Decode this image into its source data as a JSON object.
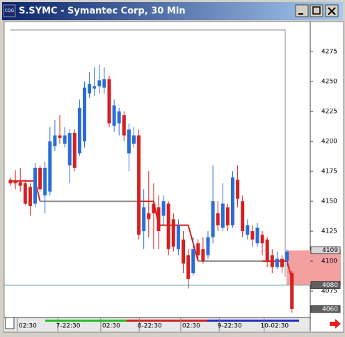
{
  "window_title": "S.SYMC - Symantec Corp, 30 Min",
  "app_icon": "CQG",
  "chart_data": {
    "type": "candlestick",
    "up_color": "#2a6dd6",
    "down_color": "#d42020",
    "ylim": [
      4053.5,
      4299.5
    ],
    "yticks": [
      4075,
      4100,
      4125,
      4150,
      4175,
      4200,
      4225,
      4250,
      4275
    ],
    "xticks": [
      {
        "value": 3.5,
        "label": "02:30"
      },
      {
        "value": 11.7,
        "label": "7-22:30"
      },
      {
        "value": 20.4,
        "label": "02:30"
      },
      {
        "value": 28.2,
        "label": "8-22:30"
      },
      {
        "value": 36.6,
        "label": "02:30"
      },
      {
        "value": 44.4,
        "label": "9-22:30"
      },
      {
        "value": 53.5,
        "label": "10-02:30"
      }
    ],
    "open": [
      4168,
      4167,
      4166,
      4165,
      4162,
      4148,
      4178,
      4155,
      4158,
      4196,
      4205,
      4198,
      4180,
      4207,
      4190,
      4200,
      4240,
      4244,
      4246,
      4245,
      4252,
      4213,
      4215,
      4222,
      4190,
      4198,
      4205,
      4125,
      4140,
      4148,
      4145,
      4138,
      4148,
      4135,
      4110,
      4118,
      4105,
      4090,
      4115,
      4110,
      4105,
      4120,
      4140,
      4128,
      4145,
      4130,
      4168,
      4150,
      4122,
      4125,
      4115,
      4122,
      4118,
      4105,
      4095,
      4102,
      4100,
      4090
    ],
    "high": [
      4170,
      4176,
      4178,
      4168,
      4165,
      4182,
      4180,
      4183,
      4212,
      4218,
      4222,
      4212,
      4210,
      4210,
      4235,
      4250,
      4258,
      4262,
      4264,
      4262,
      4255,
      4235,
      4228,
      4225,
      4215,
      4212,
      4210,
      4160,
      4175,
      4165,
      4155,
      4155,
      4150,
      4140,
      4135,
      4125,
      4110,
      4120,
      4118,
      4120,
      4125,
      4180,
      4150,
      4165,
      4148,
      4175,
      4180,
      4155,
      4135,
      4130,
      4132,
      4125,
      4120,
      4110,
      4108,
      4105,
      4110,
      4092
    ],
    "low": [
      4163,
      4160,
      4158,
      4147,
      4138,
      4145,
      4158,
      4140,
      4155,
      4192,
      4198,
      4195,
      4165,
      4175,
      4188,
      4195,
      4236,
      4238,
      4240,
      4240,
      4212,
      4208,
      4205,
      4200,
      4175,
      4195,
      4118,
      4110,
      4120,
      4110,
      4110,
      4130,
      4105,
      4108,
      4105,
      4090,
      4077,
      4088,
      4100,
      4098,
      4102,
      4115,
      4125,
      4125,
      4125,
      4128,
      4145,
      4120,
      4118,
      4112,
      4112,
      4105,
      4095,
      4090,
      4093,
      4090,
      4095,
      4057
    ],
    "close": [
      4165,
      4165,
      4163,
      4148,
      4146,
      4178,
      4160,
      4178,
      4200,
      4205,
      4203,
      4205,
      4207,
      4178,
      4228,
      4245,
      4248,
      4246,
      4251,
      4252,
      4215,
      4230,
      4225,
      4205,
      4210,
      4205,
      4122,
      4145,
      4135,
      4140,
      4125,
      4150,
      4110,
      4112,
      4130,
      4098,
      4085,
      4110,
      4105,
      4100,
      4120,
      4150,
      4130,
      4148,
      4130,
      4170,
      4152,
      4125,
      4130,
      4118,
      4128,
      4115,
      4100,
      4095,
      4102,
      4095,
      4108,
      4060
    ],
    "overlays": [
      {
        "color": "#d42020",
        "values": [
          4167,
          4167,
          4167,
          4167,
          4167,
          4167,
          4150,
          null,
          null,
          null,
          null,
          null,
          null,
          null,
          null,
          null,
          null,
          null,
          null,
          null,
          null,
          null,
          null,
          null,
          null,
          null,
          4150,
          4150,
          4150,
          4150,
          4130,
          4130,
          4130,
          4130,
          4130,
          4130,
          4130,
          4115,
          4100,
          null,
          null,
          null,
          null,
          null,
          null,
          null,
          null,
          null,
          null,
          null,
          null,
          4100,
          4100,
          4100,
          4100,
          4100,
          4100,
          4085
        ]
      },
      {
        "color": "#8c8c8c",
        "values": [
          null,
          null,
          null,
          null,
          null,
          null,
          4150,
          4150,
          4150,
          4150,
          4150,
          4150,
          4150,
          4150,
          4150,
          4150,
          4150,
          4150,
          4150,
          4150,
          4150,
          4150,
          4150,
          4150,
          4150,
          4150,
          4150,
          null,
          null,
          null,
          null,
          null,
          null,
          null,
          null,
          null,
          null,
          null,
          4100,
          4100,
          4100,
          4100,
          4100,
          4100,
          4100,
          4100,
          4100,
          4100,
          4100,
          4100,
          4100,
          4100,
          null,
          null,
          null,
          null,
          null,
          null
        ]
      }
    ],
    "price_markers": [
      4109,
      4080,
      4060
    ],
    "zone": {
      "from": 4080,
      "to": 4109,
      "color": "#f4a0a0"
    },
    "price_line": {
      "value": 4080,
      "color": "#4a9aa0"
    }
  }
}
